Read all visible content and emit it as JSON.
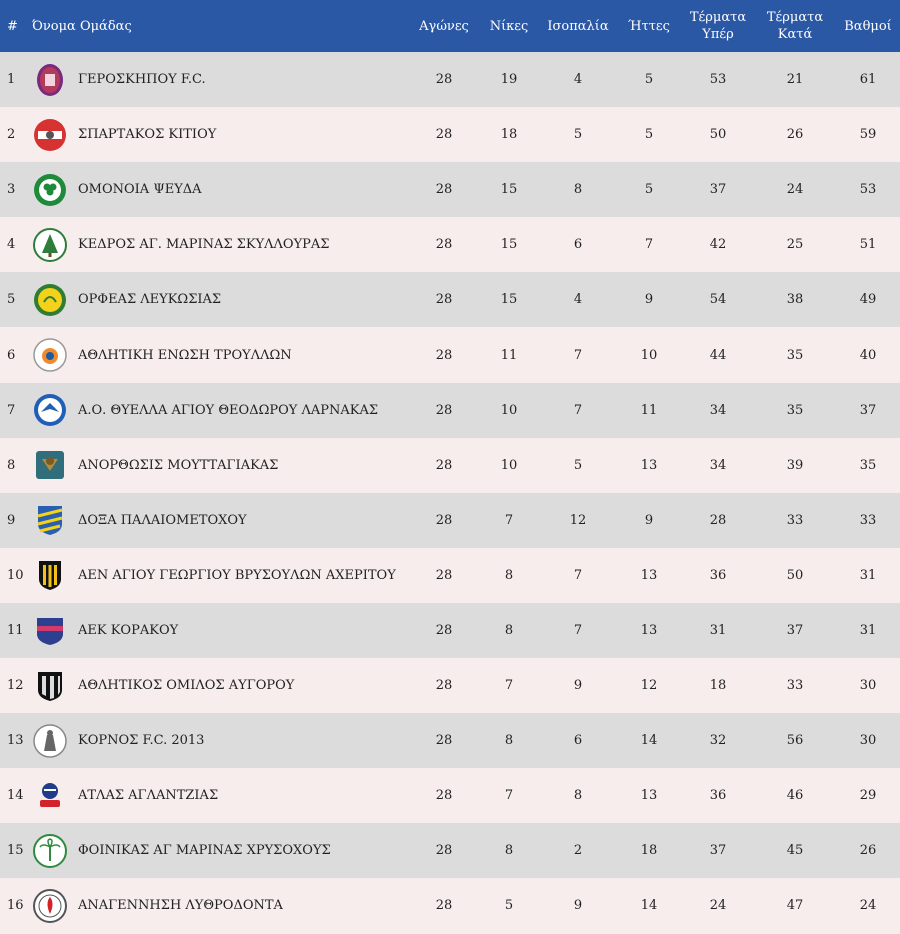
{
  "headers": {
    "pos": "#",
    "team": "Όνομα Ομάδας",
    "played": "Αγώνες",
    "wins": "Νίκες",
    "draws": "Ισοπαλία",
    "losses": "Ήττες",
    "goals_for_1": "Τέρματα",
    "goals_for_2": "Υπέρ",
    "goals_against_1": "Τέρματα",
    "goals_against_2": "Κατά",
    "points": "Βαθμοί"
  },
  "colors": {
    "header_bg": "#2b58a5",
    "row_odd": "#dcdcdc",
    "row_even": "#f7eded"
  },
  "rows": [
    {
      "pos": "1",
      "team": "ΓΕΡΟΣΚΗΠΟΥ F.C.",
      "played": "28",
      "wins": "19",
      "draws": "4",
      "losses": "5",
      "gf": "53",
      "ga": "21",
      "pts": "61",
      "logo": "geroskipou-crest-icon"
    },
    {
      "pos": "2",
      "team": "ΣΠΑΡΤΑΚΟΣ ΚΙΤΙΟΥ",
      "played": "28",
      "wins": "18",
      "draws": "5",
      "losses": "5",
      "gf": "50",
      "ga": "26",
      "pts": "59",
      "logo": "spartakos-crest-icon"
    },
    {
      "pos": "3",
      "team": "ΟΜΟΝΟΙΑ ΨΕΥΔΑ",
      "played": "28",
      "wins": "15",
      "draws": "8",
      "losses": "5",
      "gf": "37",
      "ga": "24",
      "pts": "53",
      "logo": "omonoia-crest-icon"
    },
    {
      "pos": "4",
      "team": "ΚΕΔΡΟΣ ΑΓ. ΜΑΡΙΝΑΣ ΣΚΥΛΛΟΥΡΑΣ",
      "played": "28",
      "wins": "15",
      "draws": "6",
      "losses": "7",
      "gf": "42",
      "ga": "25",
      "pts": "51",
      "logo": "kedros-crest-icon"
    },
    {
      "pos": "5",
      "team": "ΟΡΦΕΑΣ ΛΕΥΚΩΣΙΑΣ",
      "played": "28",
      "wins": "15",
      "draws": "4",
      "losses": "9",
      "gf": "54",
      "ga": "38",
      "pts": "49",
      "logo": "orfeas-crest-icon"
    },
    {
      "pos": "6",
      "team": "ΑΘΛΗΤΙΚΗ ΕΝΩΣΗ ΤΡΟΥΛΛΩΝ",
      "played": "28",
      "wins": "11",
      "draws": "7",
      "losses": "10",
      "gf": "44",
      "ga": "35",
      "pts": "40",
      "logo": "troullon-crest-icon"
    },
    {
      "pos": "7",
      "team": "Α.Ο. ΘΥΕΛΛΑ ΑΓΙΟΥ ΘΕΟΔΩΡΟΥ ΛΑΡΝΑΚΑΣ",
      "played": "28",
      "wins": "10",
      "draws": "7",
      "losses": "11",
      "gf": "34",
      "ga": "35",
      "pts": "37",
      "logo": "thyella-crest-icon"
    },
    {
      "pos": "8",
      "team": "ΑΝΟΡΘΩΣΙΣ ΜΟΥΤΤΑΓΙΑΚΑΣ",
      "played": "28",
      "wins": "10",
      "draws": "5",
      "losses": "13",
      "gf": "34",
      "ga": "39",
      "pts": "35",
      "logo": "anorthosis-crest-icon"
    },
    {
      "pos": "9",
      "team": "ΔΟΞΑ ΠΑΛΑΙΟΜΕΤΟΧΟΥ",
      "played": "28",
      "wins": "7",
      "draws": "12",
      "losses": "9",
      "gf": "28",
      "ga": "33",
      "pts": "33",
      "logo": "doxa-crest-icon"
    },
    {
      "pos": "10",
      "team": "ΑΕΝ ΑΓΙΟΥ ΓΕΩΡΓΙΟΥ ΒΡΥΣΟΥΛΩΝ ΑΧΕΡΙΤΟΥ",
      "played": "28",
      "wins": "8",
      "draws": "7",
      "losses": "13",
      "gf": "36",
      "ga": "50",
      "pts": "31",
      "logo": "aen-crest-icon"
    },
    {
      "pos": "11",
      "team": "ΑΕΚ ΚΟΡΑΚΟΥ",
      "played": "28",
      "wins": "8",
      "draws": "7",
      "losses": "13",
      "gf": "31",
      "ga": "37",
      "pts": "31",
      "logo": "aek-korakou-crest-icon"
    },
    {
      "pos": "12",
      "team": "ΑΘΛΗΤΙΚΟΣ ΟΜΙΛΟΣ ΑΥΓΟΡΟΥ",
      "played": "28",
      "wins": "7",
      "draws": "9",
      "losses": "12",
      "gf": "18",
      "ga": "33",
      "pts": "30",
      "logo": "avgorou-crest-icon"
    },
    {
      "pos": "13",
      "team": "ΚΟΡΝΟΣ F.C. 2013",
      "played": "28",
      "wins": "8",
      "draws": "6",
      "losses": "14",
      "gf": "32",
      "ga": "56",
      "pts": "30",
      "logo": "kornos-crest-icon"
    },
    {
      "pos": "14",
      "team": "ΑΤΛΑΣ ΑΓΛΑΝΤΖΙΑΣ",
      "played": "28",
      "wins": "7",
      "draws": "8",
      "losses": "13",
      "gf": "36",
      "ga": "46",
      "pts": "29",
      "logo": "atlas-crest-icon"
    },
    {
      "pos": "15",
      "team": "ΦΟΙΝΙΚΑΣ ΑΓ ΜΑΡΙΝΑΣ ΧΡΥΣΟΧΟΥΣ",
      "played": "28",
      "wins": "8",
      "draws": "2",
      "losses": "18",
      "gf": "37",
      "ga": "45",
      "pts": "26",
      "logo": "foinikas-crest-icon"
    },
    {
      "pos": "16",
      "team": "ΑΝΑΓΕΝΝΗΣΗ ΛΥΘΡΟΔΟΝΤΑ",
      "played": "28",
      "wins": "5",
      "draws": "9",
      "losses": "14",
      "gf": "24",
      "ga": "47",
      "pts": "24",
      "logo": "anagennisi-crest-icon"
    }
  ]
}
